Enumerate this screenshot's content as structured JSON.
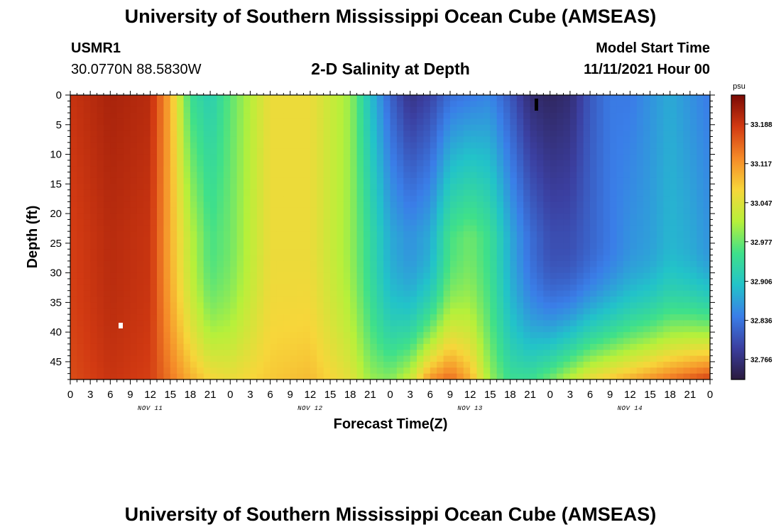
{
  "header": {
    "title": "University of Southern Mississippi Ocean Cube (AMSEAS)",
    "station_id": "USMR1",
    "station_coords": "30.0770N  88.5830W",
    "plot_title": "2-D Salinity at Depth",
    "model_start_label": "Model Start Time",
    "model_start_value": "11/11/2021 Hour 00"
  },
  "footer": {
    "title": "University of Southern Mississippi Ocean Cube (AMSEAS)"
  },
  "chart_data": {
    "type": "heatmap",
    "title": "2-D Salinity at Depth",
    "xlabel": "Forecast Time(Z)",
    "ylabel": "Depth (ft)",
    "x_ticks": [
      "0",
      "3",
      "6",
      "9",
      "12",
      "15",
      "18",
      "21",
      "0",
      "3",
      "6",
      "9",
      "12",
      "15",
      "18",
      "21",
      "0",
      "3",
      "6",
      "9",
      "12",
      "15",
      "18",
      "21",
      "0",
      "3",
      "6",
      "9",
      "12",
      "15",
      "18",
      "21",
      "0"
    ],
    "x_range_hours": [
      0,
      96
    ],
    "day_labels": [
      {
        "label": "NOV 11",
        "hour": 12
      },
      {
        "label": "NOV 12",
        "hour": 36
      },
      {
        "label": "NOV 13",
        "hour": 60
      },
      {
        "label": "NOV 14",
        "hour": 84
      }
    ],
    "y_ticks": [
      "0",
      "5",
      "10",
      "15",
      "20",
      "25",
      "30",
      "35",
      "40",
      "45"
    ],
    "y_range_ft": [
      0,
      48
    ],
    "colorbar": {
      "unit": "psu",
      "min": 32.73,
      "max": 33.24,
      "tick_labels": [
        "33.188",
        "33.117",
        "33.047",
        "32.977",
        "32.906",
        "32.836",
        "32.766"
      ],
      "tick_values": [
        33.188,
        33.117,
        33.047,
        32.977,
        32.906,
        32.836,
        32.766
      ]
    },
    "colors": {
      "scale": [
        "#2a1a3e",
        "#3b3fa0",
        "#3a7ee8",
        "#22c3c9",
        "#3fe08a",
        "#b7f03a",
        "#f7d63a",
        "#f58a28",
        "#d23a12",
        "#7a0a05"
      ]
    },
    "description_profiles": {
      "hours": [
        0,
        6,
        12,
        15,
        18,
        21,
        24,
        30,
        36,
        42,
        45,
        48,
        51,
        54,
        57,
        60,
        63,
        66,
        69,
        72,
        75,
        78,
        81,
        84,
        87,
        90,
        93,
        96
      ],
      "surface": [
        33.19,
        33.21,
        33.2,
        33.1,
        32.95,
        32.92,
        32.97,
        33.06,
        33.06,
        33.0,
        32.9,
        32.82,
        32.77,
        32.79,
        32.83,
        32.84,
        32.85,
        32.81,
        32.76,
        32.75,
        32.76,
        32.81,
        32.84,
        32.84,
        32.86,
        32.88,
        32.86,
        32.84
      ],
      "mid": [
        33.18,
        33.2,
        33.19,
        33.1,
        33.02,
        32.96,
        32.98,
        33.06,
        33.06,
        33.0,
        32.94,
        32.88,
        32.86,
        32.88,
        32.96,
        32.98,
        32.95,
        32.88,
        32.83,
        32.8,
        32.8,
        32.82,
        32.84,
        32.86,
        32.87,
        32.89,
        32.88,
        32.86
      ],
      "bottom": [
        33.17,
        33.19,
        33.18,
        33.14,
        33.1,
        33.07,
        33.06,
        33.08,
        33.09,
        33.05,
        33.0,
        32.99,
        33.03,
        33.12,
        33.15,
        33.1,
        33.0,
        32.95,
        32.95,
        32.98,
        33.02,
        33.06,
        33.08,
        33.1,
        33.12,
        33.14,
        33.16,
        33.18
      ]
    }
  }
}
